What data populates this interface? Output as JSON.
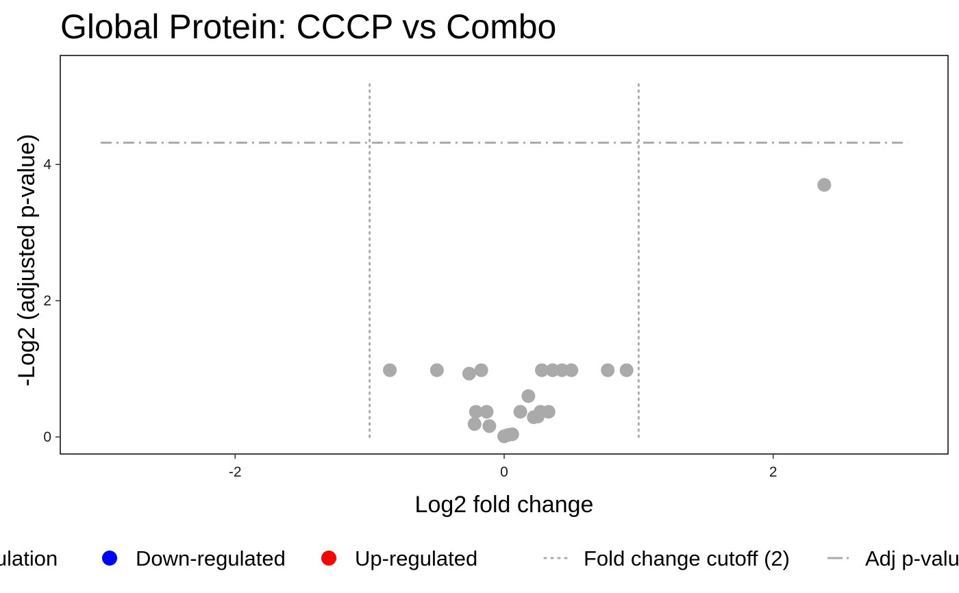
{
  "chart_data": {
    "type": "scatter",
    "title": "Global Protein: CCCP vs Combo",
    "xlabel": "Log2 fold change",
    "ylabel": "-Log2 (adjusted p-value)",
    "xlim": [
      -3.3,
      3.3
    ],
    "ylim": [
      -0.25,
      5.6
    ],
    "x_ticks": [
      {
        "value": -2,
        "label": "-2"
      },
      {
        "value": 0,
        "label": "0"
      },
      {
        "value": 2,
        "label": "2"
      }
    ],
    "y_ticks": [
      {
        "value": 0,
        "label": "0"
      },
      {
        "value": 2,
        "label": "2"
      },
      {
        "value": 4,
        "label": "4"
      }
    ],
    "grid": false,
    "fold_change_cutoff_lines": [
      -1,
      1
    ],
    "fold_change_cutoff_y_range": [
      0,
      5.2
    ],
    "adj_pvalue_cutoff_line": 4.32,
    "adj_pvalue_cutoff_x_range": [
      -3,
      3
    ],
    "point_color": "#aaaaaa",
    "line_color": "#aaaaaa",
    "points": [
      {
        "x": -0.85,
        "y": 0.98
      },
      {
        "x": -0.5,
        "y": 0.98
      },
      {
        "x": -0.26,
        "y": 0.93
      },
      {
        "x": -0.17,
        "y": 0.98
      },
      {
        "x": -0.21,
        "y": 0.37
      },
      {
        "x": -0.13,
        "y": 0.37
      },
      {
        "x": -0.22,
        "y": 0.19
      },
      {
        "x": -0.11,
        "y": 0.16
      },
      {
        "x": 0.0,
        "y": 0.01
      },
      {
        "x": 0.03,
        "y": 0.03
      },
      {
        "x": 0.06,
        "y": 0.04
      },
      {
        "x": 0.12,
        "y": 0.37
      },
      {
        "x": 0.18,
        "y": 0.6
      },
      {
        "x": 0.22,
        "y": 0.29
      },
      {
        "x": 0.25,
        "y": 0.3
      },
      {
        "x": 0.27,
        "y": 0.37
      },
      {
        "x": 0.28,
        "y": 0.98
      },
      {
        "x": 0.33,
        "y": 0.37
      },
      {
        "x": 0.36,
        "y": 0.98
      },
      {
        "x": 0.43,
        "y": 0.98
      },
      {
        "x": 0.5,
        "y": 0.98
      },
      {
        "x": 0.77,
        "y": 0.98
      },
      {
        "x": 0.91,
        "y": 0.98
      },
      {
        "x": 2.38,
        "y": 3.7
      }
    ],
    "legend": {
      "placement": "bottom",
      "items": [
        {
          "label": "Regulation",
          "kind": "title"
        },
        {
          "label": "Down-regulated",
          "kind": "dot",
          "color": "#0000ff"
        },
        {
          "label": "Up-regulated",
          "kind": "dot",
          "color": "#ff0000"
        },
        {
          "label": "Fold change cutoff (2)",
          "kind": "dotted-line",
          "color": "#aaaaaa"
        },
        {
          "label": "Adj p-value cutoff",
          "kind": "dashdot-line",
          "color": "#aaaaaa"
        }
      ]
    }
  }
}
